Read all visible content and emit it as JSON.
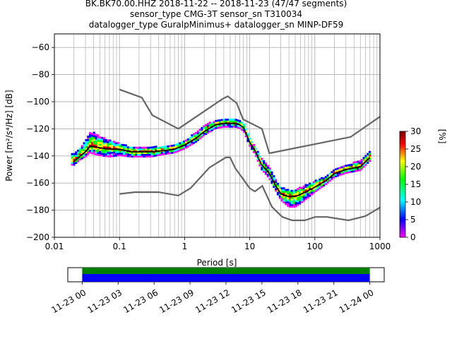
{
  "chart_data": {
    "type": "heatmap",
    "title_lines": [
      "BK.BK70.00.HHZ   2018-11-22 -- 2018-11-23  (47/47 segments)",
      "sensor_type CMG-3T sensor_sn T310034",
      "datalogger_type GuralpMinimus+ datalogger_sn MINP-DF59"
    ],
    "xlabel": "Period [s]",
    "ylabel": "Power [m²/s⁴/Hz] [dB]",
    "xscale": "log",
    "xlim": [
      0.01,
      1000
    ],
    "ylim": [
      -200,
      -50
    ],
    "xticks": [
      {
        "value": 0.01,
        "label": "0.01"
      },
      {
        "value": 0.1,
        "label": "0.1"
      },
      {
        "value": 1,
        "label": "1"
      },
      {
        "value": 10,
        "label": "10"
      },
      {
        "value": 100,
        "label": "100"
      },
      {
        "value": 1000,
        "label": "1000"
      }
    ],
    "yticks": [
      {
        "value": -60,
        "label": "−60"
      },
      {
        "value": -80,
        "label": "−80"
      },
      {
        "value": -100,
        "label": "−100"
      },
      {
        "value": -120,
        "label": "−120"
      },
      {
        "value": -140,
        "label": "−140"
      },
      {
        "value": -160,
        "label": "−160"
      },
      {
        "value": -180,
        "label": "−180"
      },
      {
        "value": -200,
        "label": "−200"
      }
    ],
    "grid": true,
    "colorbar": {
      "label": "[%]",
      "range": [
        0,
        30
      ],
      "ticks": [
        "0",
        "5",
        "10",
        "15",
        "20",
        "25",
        "30"
      ],
      "colormap": [
        "#ff00ff",
        "#0000ff",
        "#00ffff",
        "#00ff00",
        "#ffff00",
        "#ff0000",
        "#800000"
      ],
      "position": "right"
    },
    "noise_models": [
      {
        "id": "high_noise_model",
        "x": [
          0.1,
          0.22,
          0.32,
          0.8,
          3.8,
          4.6,
          6.3,
          7.9,
          15.4,
          20,
          354.8,
          1000
        ],
        "y": [
          -91,
          -97,
          -110,
          -120,
          -98,
          -96,
          -101,
          -113,
          -120,
          -138,
          -126,
          -111
        ]
      },
      {
        "id": "low_noise_model",
        "x": [
          0.1,
          0.17,
          0.4,
          0.8,
          1.24,
          2.4,
          4.3,
          5,
          6,
          10,
          12,
          15.6,
          21.9,
          31.6,
          45,
          70,
          101,
          154,
          328,
          600,
          1000
        ],
        "y": [
          -168,
          -166.7,
          -166.7,
          -169.2,
          -163.7,
          -148.6,
          -141.1,
          -141.1,
          -149,
          -163.8,
          -166.2,
          -162.1,
          -177.5,
          -185,
          -187.5,
          -187.5,
          -185,
          -185,
          -187.5,
          -184.4,
          -178
        ]
      }
    ],
    "mode_curve": {
      "x": [
        0.02,
        0.025,
        0.03,
        0.035,
        0.04,
        0.05,
        0.07,
        0.1,
        0.15,
        0.2,
        0.3,
        0.5,
        0.7,
        1,
        1.5,
        2,
        3,
        4,
        5,
        6,
        7,
        8,
        10,
        12,
        15,
        20,
        25,
        30,
        40,
        50,
        70,
        100,
        150,
        200,
        300,
        500,
        700
      ],
      "y": [
        -144,
        -140,
        -137,
        -133,
        -133,
        -134,
        -135,
        -135,
        -137,
        -137,
        -137,
        -136,
        -135,
        -132,
        -127,
        -122,
        -117,
        -116,
        -116,
        -116,
        -117,
        -119,
        -130,
        -136,
        -146,
        -153,
        -162,
        -168,
        -170,
        -170,
        -167,
        -163,
        -158,
        -153,
        -150,
        -148,
        -141
      ]
    },
    "psd_distribution": {
      "description_note": "colored probability density cells follow the mode curve with spread",
      "upper_spread": [
        6,
        6,
        8,
        10,
        10,
        8,
        6,
        4,
        3,
        3,
        3,
        3,
        3,
        3,
        4,
        4,
        3,
        3,
        3,
        3,
        3,
        3,
        3,
        3,
        4,
        4,
        4,
        4,
        5,
        5,
        5,
        4,
        3,
        3,
        3,
        4,
        4
      ],
      "lower_spread": [
        3,
        3,
        4,
        5,
        6,
        6,
        6,
        5,
        4,
        4,
        4,
        3,
        3,
        3,
        3,
        3,
        3,
        3,
        3,
        3,
        3,
        3,
        3,
        3,
        4,
        4,
        4,
        5,
        8,
        8,
        6,
        4,
        3,
        3,
        3,
        3,
        3
      ]
    },
    "time_coverage": {
      "tick_labels": [
        "11-23 00",
        "11-23 03",
        "11-23 06",
        "11-23 09",
        "11-23 12",
        "11-23 15",
        "11-23 18",
        "11-23 21",
        "11-24 00"
      ],
      "tick_hours": [
        0,
        3,
        6,
        9,
        12,
        15,
        18,
        21,
        24
      ],
      "range_hours": [
        -1.2,
        25.2
      ],
      "coverage_hours": [
        0,
        24
      ],
      "colors": [
        "#008000",
        "#0000ff"
      ]
    }
  }
}
